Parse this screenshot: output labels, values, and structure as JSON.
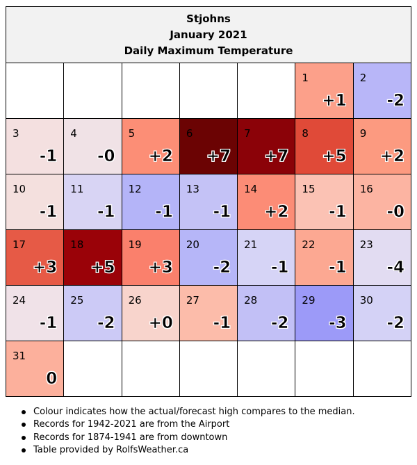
{
  "header": {
    "city": "Stjohns",
    "month": "January 2021",
    "metric": "Daily Maximum Temperature"
  },
  "calendar": {
    "weeks": [
      [
        null,
        null,
        null,
        null,
        null,
        {
          "day": "1",
          "anomaly": "+1",
          "color": "#fca08a"
        },
        {
          "day": "2",
          "anomaly": "-2",
          "color": "#b8b6f8"
        }
      ],
      [
        {
          "day": "3",
          "anomaly": "-1",
          "color": "#f4e0e0"
        },
        {
          "day": "4",
          "anomaly": "-0",
          "color": "#f0e2e6"
        },
        {
          "day": "5",
          "anomaly": "+2",
          "color": "#fc8e76"
        },
        {
          "day": "6",
          "anomaly": "+7",
          "color": "#6b0303"
        },
        {
          "day": "7",
          "anomaly": "+7",
          "color": "#8b0208"
        },
        {
          "day": "8",
          "anomaly": "+5",
          "color": "#e04a38"
        },
        {
          "day": "9",
          "anomaly": "+2",
          "color": "#fc9a80"
        }
      ],
      [
        {
          "day": "10",
          "anomaly": "-1",
          "color": "#f4e0de"
        },
        {
          "day": "11",
          "anomaly": "-1",
          "color": "#d8d4f4"
        },
        {
          "day": "12",
          "anomaly": "-1",
          "color": "#b4b4f8"
        },
        {
          "day": "13",
          "anomaly": "-1",
          "color": "#c4c2f6"
        },
        {
          "day": "14",
          "anomaly": "+2",
          "color": "#fc8c76"
        },
        {
          "day": "15",
          "anomaly": "-1",
          "color": "#fbc2b4"
        },
        {
          "day": "16",
          "anomaly": "-0",
          "color": "#fcb4a2"
        }
      ],
      [
        {
          "day": "17",
          "anomaly": "+3",
          "color": "#e65a46"
        },
        {
          "day": "18",
          "anomaly": "+5",
          "color": "#9a0208"
        },
        {
          "day": "19",
          "anomaly": "+3",
          "color": "#fa806c"
        },
        {
          "day": "20",
          "anomaly": "-2",
          "color": "#b6b6f8"
        },
        {
          "day": "21",
          "anomaly": "-1",
          "color": "#d6d4f6"
        },
        {
          "day": "22",
          "anomaly": "-1",
          "color": "#fca892"
        },
        {
          "day": "23",
          "anomaly": "-4",
          "color": "#e2dcf2"
        }
      ],
      [
        {
          "day": "24",
          "anomaly": "-1",
          "color": "#f0e2e8"
        },
        {
          "day": "25",
          "anomaly": "-2",
          "color": "#cccaf6"
        },
        {
          "day": "26",
          "anomaly": "+0",
          "color": "#f8d4cc"
        },
        {
          "day": "27",
          "anomaly": "-1",
          "color": "#fcbcaa"
        },
        {
          "day": "28",
          "anomaly": "-2",
          "color": "#c2c0f6"
        },
        {
          "day": "29",
          "anomaly": "-3",
          "color": "#9c9af8"
        },
        {
          "day": "30",
          "anomaly": "-2",
          "color": "#d4d2f6"
        }
      ],
      [
        {
          "day": "31",
          "anomaly": "0",
          "color": "#fcb09c"
        },
        null,
        null,
        null,
        null,
        null,
        null
      ]
    ]
  },
  "notes": [
    "Colour indicates how the actual/forecast high compares to the median.",
    "Records for 1942-2021 are from the Airport",
    "Records for 1874-1941 are from downtown",
    "Table provided by RolfsWeather.ca"
  ]
}
